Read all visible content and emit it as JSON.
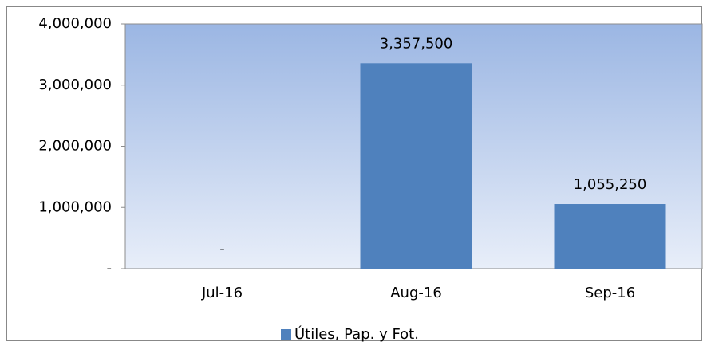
{
  "chart_data": {
    "type": "bar",
    "categories": [
      "Jul-16",
      "Aug-16",
      "Sep-16"
    ],
    "series": [
      {
        "name": "Útiles, Pap. y Fot.",
        "color": "#4f81bd",
        "values": [
          0,
          3357500,
          1055250
        ],
        "value_labels": [
          "-",
          "3,357,500",
          "1,055,250"
        ]
      }
    ],
    "ylim": [
      0,
      4000000
    ],
    "yticks": [
      {
        "value": 0,
        "label": "-"
      },
      {
        "value": 1000000,
        "label": "1,000,000"
      },
      {
        "value": 2000000,
        "label": "2,000,000"
      },
      {
        "value": 3000000,
        "label": "3,000,000"
      },
      {
        "value": 4000000,
        "label": "4,000,000"
      }
    ],
    "legend": "bottom"
  }
}
